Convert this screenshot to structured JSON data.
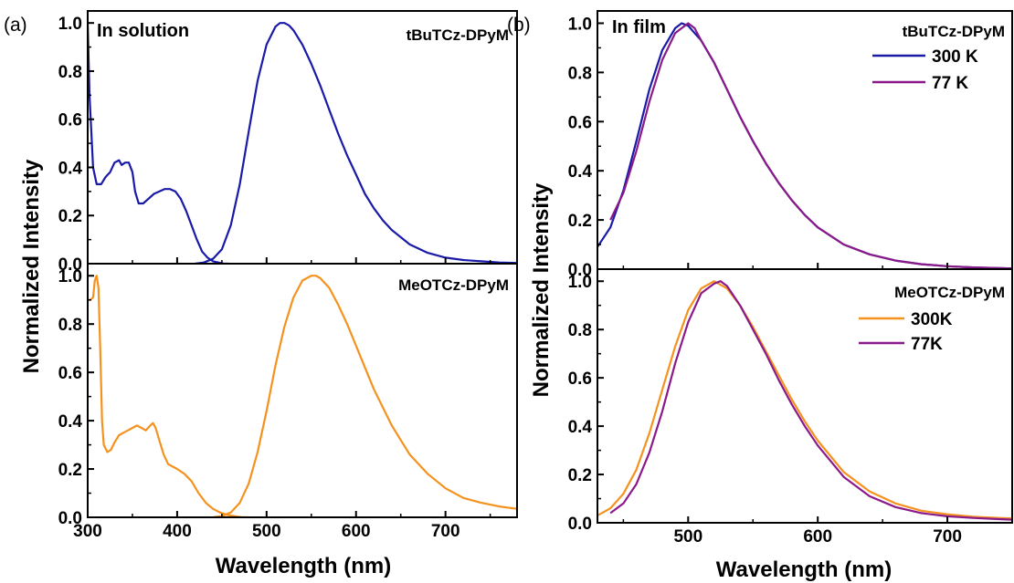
{
  "chart_data": [
    {
      "type": "line",
      "panel": "(a)",
      "annotation": "In solution",
      "sample_label": "tBuTCz-DPyM",
      "xlabel": "",
      "ylabel": "",
      "xlim": [
        300,
        780
      ],
      "ylim": [
        0,
        1.05
      ],
      "yticks": [
        "0.0",
        "0.2",
        "0.4",
        "0.6",
        "0.8",
        "1.0"
      ],
      "series": [
        {
          "color": "#1a1aa8",
          "x": [
            300,
            302,
            306,
            310,
            315,
            320,
            325,
            330,
            335,
            338,
            342,
            346,
            350,
            353,
            357,
            362,
            368,
            374,
            380,
            386,
            392,
            398,
            404,
            410,
            416,
            422,
            428,
            434,
            440,
            446,
            452,
            458
          ],
          "y": [
            1.0,
            0.7,
            0.4,
            0.33,
            0.33,
            0.36,
            0.38,
            0.42,
            0.43,
            0.41,
            0.42,
            0.42,
            0.38,
            0.3,
            0.25,
            0.25,
            0.27,
            0.29,
            0.3,
            0.31,
            0.31,
            0.3,
            0.27,
            0.22,
            0.16,
            0.1,
            0.05,
            0.025,
            0.01,
            0.005,
            0.0,
            0.0
          ]
        },
        {
          "color": "#1a1aa8",
          "x": [
            420,
            430,
            440,
            450,
            460,
            470,
            480,
            490,
            500,
            510,
            515,
            520,
            525,
            530,
            540,
            550,
            560,
            570,
            580,
            590,
            600,
            610,
            620,
            630,
            640,
            660,
            680,
            700,
            720,
            740,
            760,
            780
          ],
          "y": [
            0.0,
            0.005,
            0.02,
            0.06,
            0.16,
            0.33,
            0.55,
            0.76,
            0.91,
            0.985,
            1.0,
            1.0,
            0.99,
            0.97,
            0.91,
            0.83,
            0.74,
            0.64,
            0.54,
            0.45,
            0.37,
            0.29,
            0.23,
            0.18,
            0.14,
            0.08,
            0.045,
            0.025,
            0.015,
            0.01,
            0.005,
            0.003
          ]
        }
      ]
    },
    {
      "type": "line",
      "panel": "",
      "annotation": "",
      "sample_label": "MeOTCz-DPyM",
      "xlabel": "Wavelength (nm)",
      "ylabel": "Normalized Intensity",
      "xlim": [
        300,
        780
      ],
      "ylim": [
        0,
        1.05
      ],
      "xticks": [
        "300",
        "400",
        "500",
        "600",
        "700"
      ],
      "yticks": [
        "0.0",
        "0.2",
        "0.4",
        "0.6",
        "0.8",
        "1.0"
      ],
      "series": [
        {
          "color": "#f5921e",
          "x": [
            300,
            303,
            306,
            308,
            310,
            312,
            314,
            316,
            318,
            322,
            326,
            330,
            335,
            340,
            345,
            350,
            355,
            360,
            365,
            370,
            373,
            376,
            380,
            385,
            390,
            395,
            400,
            408,
            416,
            424,
            432,
            440,
            448,
            456,
            464,
            472,
            480
          ],
          "y": [
            0.9,
            0.9,
            0.91,
            0.98,
            1.0,
            0.95,
            0.7,
            0.4,
            0.3,
            0.27,
            0.28,
            0.31,
            0.34,
            0.35,
            0.36,
            0.37,
            0.38,
            0.37,
            0.36,
            0.38,
            0.39,
            0.37,
            0.32,
            0.26,
            0.22,
            0.21,
            0.2,
            0.18,
            0.15,
            0.1,
            0.06,
            0.035,
            0.02,
            0.01,
            0.005,
            0.0,
            0.0
          ]
        },
        {
          "color": "#f5921e",
          "x": [
            440,
            450,
            460,
            470,
            480,
            490,
            500,
            510,
            520,
            530,
            540,
            550,
            555,
            560,
            570,
            580,
            590,
            600,
            610,
            620,
            640,
            660,
            680,
            700,
            720,
            740,
            760,
            780
          ],
          "y": [
            0.0,
            0.005,
            0.02,
            0.06,
            0.14,
            0.27,
            0.44,
            0.63,
            0.79,
            0.91,
            0.98,
            1.0,
            1.0,
            0.99,
            0.95,
            0.88,
            0.8,
            0.71,
            0.62,
            0.53,
            0.38,
            0.26,
            0.18,
            0.12,
            0.08,
            0.06,
            0.045,
            0.035
          ]
        }
      ]
    },
    {
      "type": "line",
      "panel": "(b)",
      "annotation": "In film",
      "sample_label": "tBuTCz-DPyM",
      "xlabel": "",
      "ylabel": "",
      "xlim": [
        430,
        750
      ],
      "ylim": [
        0,
        1.05
      ],
      "yticks": [
        "0.0",
        "0.2",
        "0.4",
        "0.6",
        "0.8",
        "1.0"
      ],
      "series": [
        {
          "name": "300 K",
          "color": "#1a1aa8",
          "x": [
            430,
            440,
            450,
            460,
            470,
            480,
            490,
            495,
            500,
            510,
            520,
            530,
            540,
            550,
            560,
            570,
            580,
            590,
            600,
            620,
            640,
            660,
            680,
            700,
            720,
            740,
            750
          ],
          "y": [
            0.09,
            0.17,
            0.32,
            0.52,
            0.73,
            0.89,
            0.98,
            1.0,
            0.99,
            0.93,
            0.84,
            0.73,
            0.62,
            0.52,
            0.43,
            0.35,
            0.28,
            0.22,
            0.17,
            0.1,
            0.06,
            0.035,
            0.02,
            0.012,
            0.007,
            0.004,
            0.003
          ]
        },
        {
          "name": "77 K",
          "color": "#8a1a8a",
          "x": [
            440,
            450,
            460,
            470,
            480,
            490,
            495,
            500,
            505,
            510,
            520,
            530,
            540,
            550,
            560,
            570,
            580,
            590,
            600,
            620,
            640,
            660,
            680,
            700,
            720,
            740,
            750
          ],
          "y": [
            0.2,
            0.31,
            0.48,
            0.68,
            0.85,
            0.96,
            0.98,
            1.0,
            0.98,
            0.93,
            0.84,
            0.73,
            0.62,
            0.52,
            0.43,
            0.35,
            0.28,
            0.22,
            0.17,
            0.1,
            0.06,
            0.035,
            0.02,
            0.012,
            0.007,
            0.004,
            0.003
          ]
        }
      ]
    },
    {
      "type": "line",
      "panel": "",
      "annotation": "",
      "sample_label": "MeOTCz-DPyM",
      "xlabel": "Wavelength (nm)",
      "ylabel": "Normalized Intensity",
      "xlim": [
        430,
        750
      ],
      "ylim": [
        0,
        1.05
      ],
      "xticks": [
        "500",
        "600",
        "700"
      ],
      "yticks": [
        "0.0",
        "0.2",
        "0.4",
        "0.6",
        "0.8",
        "1.0"
      ],
      "series": [
        {
          "name": "300K",
          "color": "#f5921e",
          "x": [
            430,
            440,
            450,
            460,
            470,
            480,
            490,
            500,
            510,
            520,
            530,
            540,
            550,
            560,
            570,
            580,
            590,
            600,
            620,
            640,
            660,
            680,
            700,
            720,
            740,
            750
          ],
          "y": [
            0.03,
            0.06,
            0.12,
            0.22,
            0.37,
            0.55,
            0.73,
            0.88,
            0.97,
            1.0,
            0.97,
            0.9,
            0.81,
            0.71,
            0.61,
            0.51,
            0.42,
            0.34,
            0.21,
            0.13,
            0.08,
            0.05,
            0.035,
            0.025,
            0.02,
            0.018
          ]
        },
        {
          "name": "77K",
          "color": "#8a1a8a",
          "x": [
            440,
            450,
            460,
            470,
            480,
            490,
            500,
            510,
            520,
            525,
            530,
            540,
            550,
            560,
            570,
            580,
            590,
            600,
            620,
            640,
            660,
            680,
            700,
            720,
            740,
            750
          ],
          "y": [
            0.04,
            0.08,
            0.16,
            0.29,
            0.46,
            0.66,
            0.83,
            0.95,
            0.99,
            1.0,
            0.98,
            0.9,
            0.8,
            0.7,
            0.59,
            0.49,
            0.4,
            0.32,
            0.19,
            0.11,
            0.065,
            0.04,
            0.027,
            0.02,
            0.015,
            0.013
          ]
        }
      ]
    }
  ]
}
